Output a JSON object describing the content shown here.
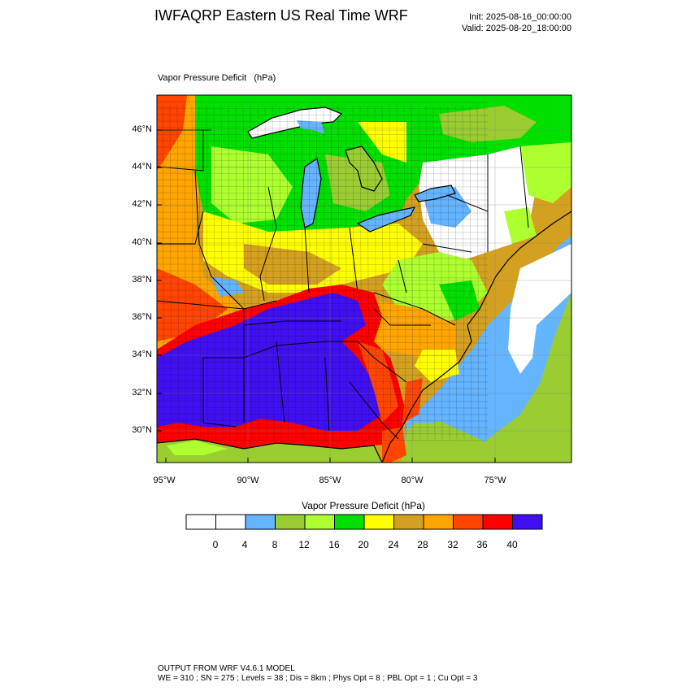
{
  "header": {
    "title": "IWFAQRP Eastern US Real Time WRF",
    "init": "Init: 2025-08-16_00:00:00",
    "valid": "Valid: 2025-08-20_18:00:00"
  },
  "field_label": "Vapor Pressure Deficit   (hPa)",
  "lat_ticks": [
    "46°N",
    "44°N",
    "42°N",
    "40°N",
    "38°N",
    "36°N",
    "34°N",
    "32°N",
    "30°N"
  ],
  "lon_ticks": [
    "95°W",
    "90°W",
    "85°W",
    "80°W",
    "75°W"
  ],
  "colorbar": {
    "title": "Vapor Pressure Deficit  (hPa)",
    "labels": [
      "0",
      "4",
      "8",
      "12",
      "16",
      "20",
      "24",
      "28",
      "32",
      "36",
      "40"
    ],
    "colors": [
      "#ffffff",
      "#ffffff",
      "#64b4ff",
      "#9acd32",
      "#adff2f",
      "#00e000",
      "#ffff00",
      "#d4a020",
      "#ffa500",
      "#ff4500",
      "#ff0000",
      "#4010f0"
    ]
  },
  "footer": {
    "line1": "OUTPUT FROM WRF V4.6.1 MODEL",
    "line2": "WE = 310 ; SN = 275 ; Levels = 38 ; Dis = 8km ; Phys Opt = 8 ; PBL Opt = 1 ; Cu Opt = 3"
  }
}
